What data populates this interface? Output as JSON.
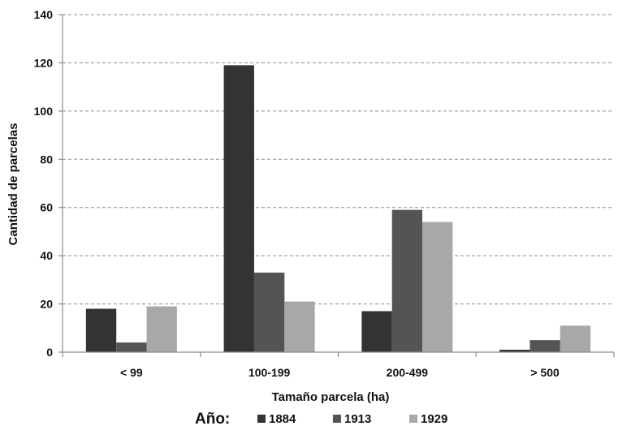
{
  "chart_data": {
    "type": "bar",
    "title": "",
    "xlabel": "Tamaño parcela  (ha)",
    "ylabel": "Cantidad de parcelas",
    "categories": [
      "< 99",
      "100-199",
      "200-499",
      "> 500"
    ],
    "series": [
      {
        "name": "1884",
        "values": [
          18,
          119,
          17,
          1
        ],
        "color": "#333333"
      },
      {
        "name": "1913",
        "values": [
          4,
          33,
          59,
          5
        ],
        "color": "#545454"
      },
      {
        "name": "1929",
        "values": [
          19,
          21,
          54,
          11
        ],
        "color": "#a8a8a8"
      }
    ],
    "ylim": [
      0,
      140
    ],
    "yticks": [
      0,
      20,
      40,
      60,
      80,
      100,
      120,
      140
    ],
    "grid": true,
    "legend": {
      "title": "Año:",
      "placement": "bottom"
    }
  }
}
